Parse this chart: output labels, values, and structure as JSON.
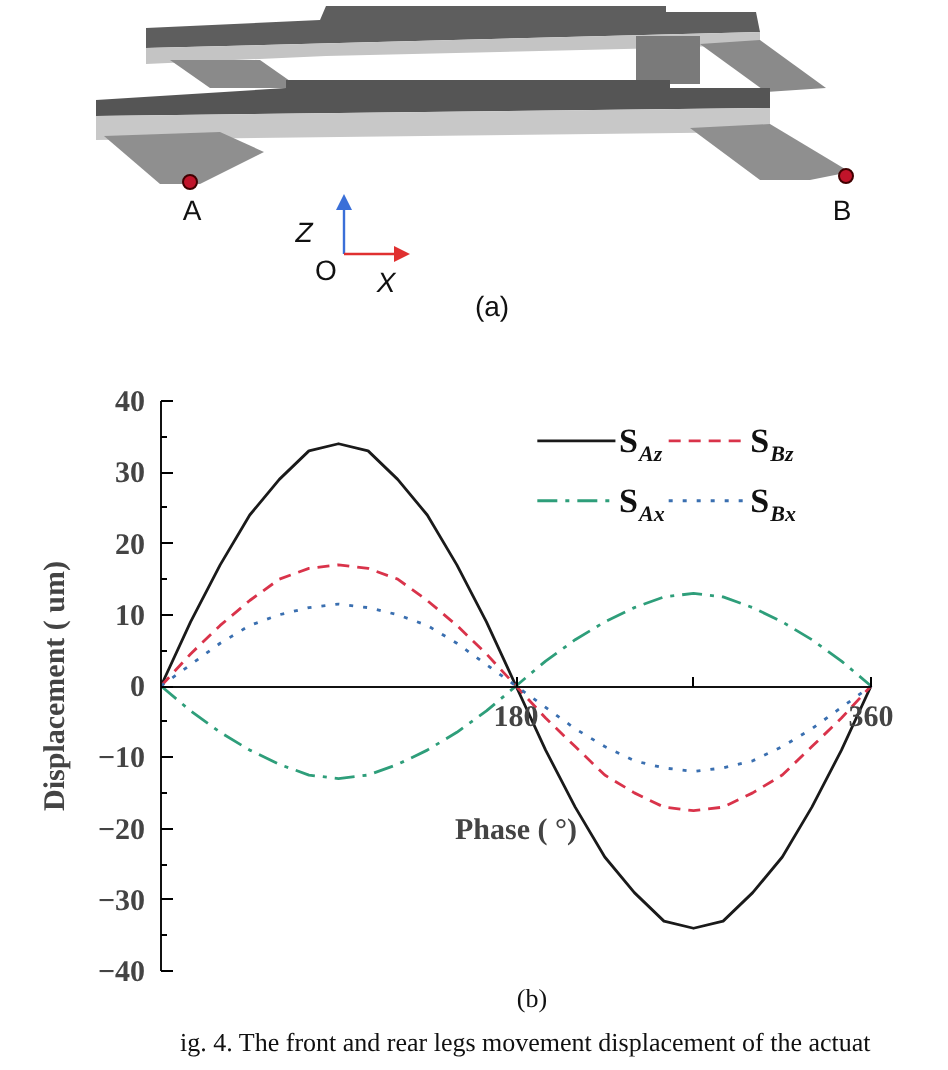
{
  "chart_data": {
    "type": "line",
    "xlabel": "Phase ( °)",
    "ylabel": "Displacement ( um)",
    "annotations": [
      "A",
      "B",
      "Z",
      "O",
      "X",
      "(a)",
      "(b)",
      "ig. 4.   The front and rear legs movement displacement of the actuat"
    ],
    "x": [
      0,
      15,
      30,
      45,
      60,
      75,
      90,
      105,
      120,
      135,
      150,
      165,
      180,
      195,
      210,
      225,
      240,
      255,
      270,
      285,
      300,
      315,
      330,
      345,
      360
    ],
    "series": [
      {
        "name": "S$_{Az}$",
        "color": "#1a1a1a",
        "line_style": "solid",
        "values": [
          0,
          9,
          17,
          24,
          29,
          33,
          34,
          33,
          29,
          24,
          17,
          9,
          0,
          -9,
          -17,
          -24,
          -29,
          -33,
          -34,
          -33,
          -29,
          -24,
          -17,
          -9,
          0
        ]
      },
      {
        "name": "S$_{Bz}$",
        "color": "#d9334a",
        "line_style": "dashed",
        "values": [
          0,
          4.5,
          8.5,
          12,
          15,
          16.5,
          17,
          16.5,
          15,
          12,
          8.5,
          4.5,
          0,
          -4.5,
          -8.5,
          -12.5,
          -15,
          -17,
          -17.5,
          -17,
          -15,
          -12.5,
          -8.5,
          -4.5,
          0
        ]
      },
      {
        "name": "S$_{Ax}$",
        "color": "#2e9e7a",
        "line_style": "dashdot",
        "values": [
          0,
          -3.5,
          -6.5,
          -9,
          -11,
          -12.5,
          -13,
          -12.5,
          -11,
          -9,
          -6.5,
          -3.5,
          0,
          3.5,
          6.5,
          9,
          11,
          12.5,
          13,
          12.5,
          11,
          9,
          6.5,
          3.5,
          0
        ]
      },
      {
        "name": "S$_{Bx}$",
        "color": "#3a6fb0",
        "line_style": "dotted",
        "values": [
          0,
          3,
          6,
          8.5,
          10,
          11,
          11.5,
          11,
          10,
          8.5,
          6,
          3,
          0,
          -3,
          -6,
          -8.5,
          -10.5,
          -11.5,
          -12,
          -11.5,
          -10.5,
          -8.5,
          -6,
          -3,
          0
        ]
      }
    ],
    "xlim": [
      0,
      360
    ],
    "ylim": [
      -40,
      40
    ],
    "xticks": [
      180,
      {
        "value": 270,
        "label": null
      },
      360
    ],
    "yticks": [
      -40,
      -30,
      -20,
      -10,
      0,
      10,
      20,
      30,
      40
    ],
    "legend": "top right",
    "grid": false
  }
}
